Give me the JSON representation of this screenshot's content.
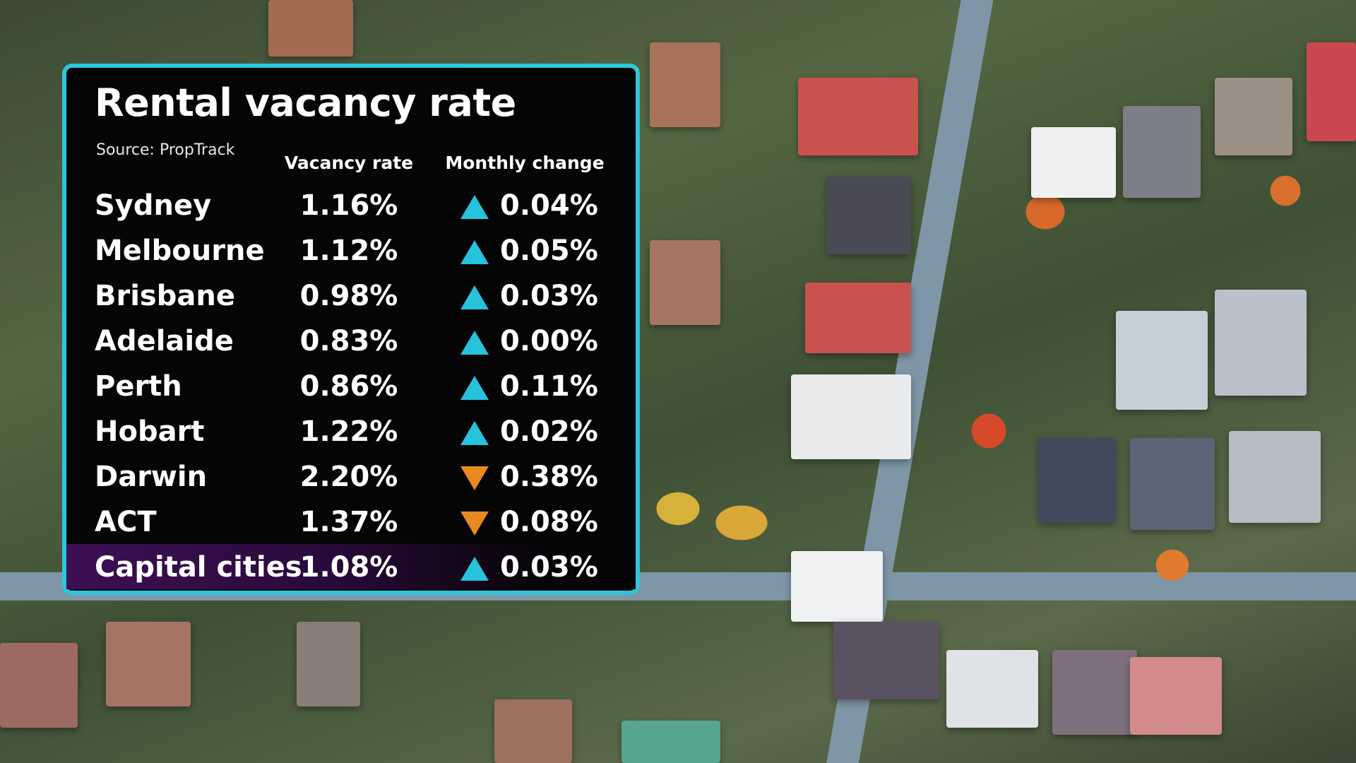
{
  "chart_data": {
    "type": "table",
    "title": "Rental vacancy rate",
    "subtitle": "Source: PropTrack",
    "columns": [
      "Vacancy rate",
      "Monthly change"
    ],
    "rows": [
      {
        "city": "Sydney",
        "rate": "1.16%",
        "direction": "up",
        "change": "0.04%"
      },
      {
        "city": "Melbourne",
        "rate": "1.12%",
        "direction": "up",
        "change": "0.05%"
      },
      {
        "city": "Brisbane",
        "rate": "0.98%",
        "direction": "up",
        "change": "0.03%"
      },
      {
        "city": "Adelaide",
        "rate": "0.83%",
        "direction": "up",
        "change": "0.00%"
      },
      {
        "city": "Perth",
        "rate": "0.86%",
        "direction": "up",
        "change": "0.11%"
      },
      {
        "city": "Hobart",
        "rate": "1.22%",
        "direction": "up",
        "change": "0.02%"
      },
      {
        "city": "Darwin",
        "rate": "2.20%",
        "direction": "down",
        "change": "0.38%"
      },
      {
        "city": "ACT",
        "rate": "1.37%",
        "direction": "down",
        "change": "0.08%"
      },
      {
        "city": "Capital cities",
        "rate": "1.08%",
        "direction": "up",
        "change": "0.03%",
        "highlight": true
      }
    ]
  },
  "colors": {
    "up": "#27c2dc",
    "down": "#e8891f",
    "border": "#2ec6dc",
    "highlight": "#3d1055"
  },
  "icons": {
    "up": "triangle-up-icon",
    "down": "triangle-down-icon"
  }
}
